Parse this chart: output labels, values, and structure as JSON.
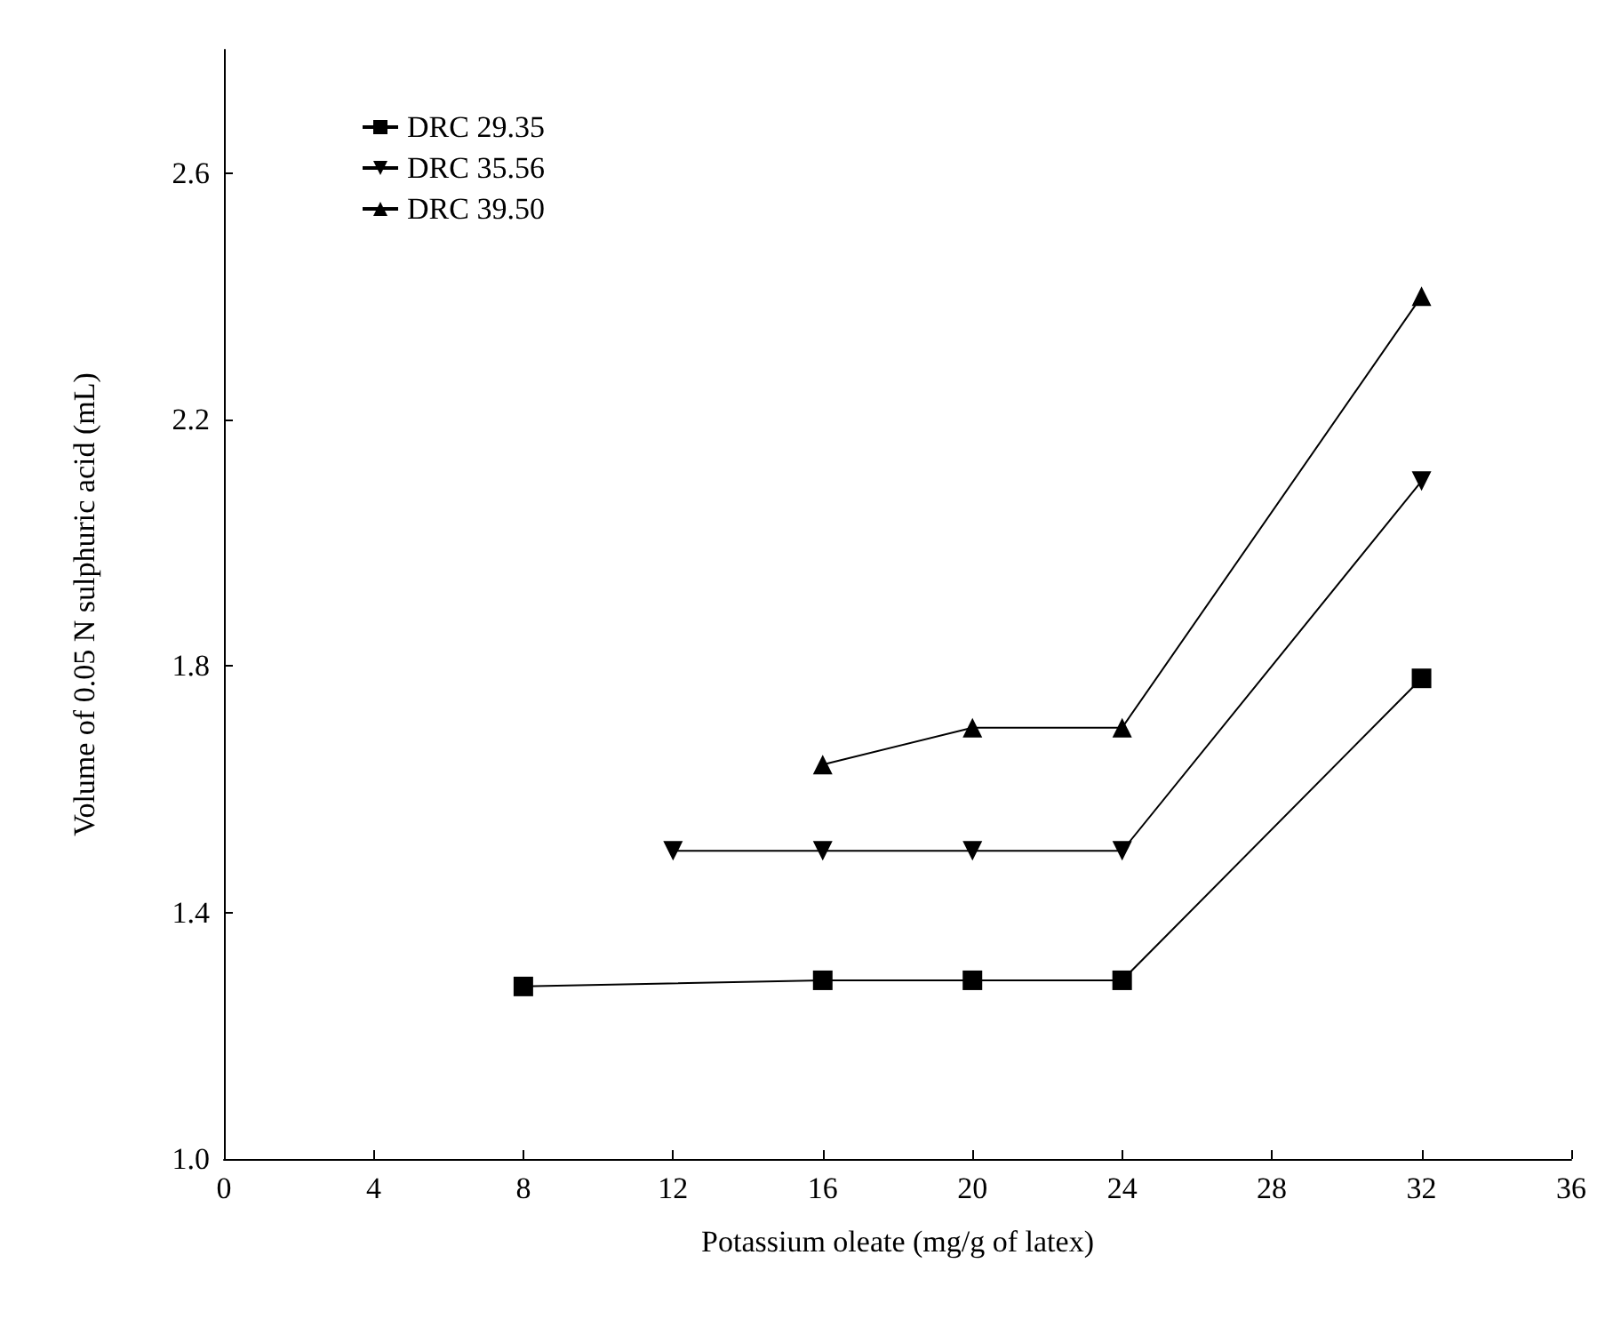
{
  "chart_data": {
    "type": "line",
    "xlabel": "Potassium oleate (mg/g of latex)",
    "ylabel": "Volume of 0.05 N sulphuric acid (mL)",
    "xlim": [
      0,
      36
    ],
    "xticks": [
      0,
      4,
      8,
      12,
      16,
      20,
      24,
      28,
      32,
      36
    ],
    "ylim": [
      1.0,
      2.8
    ],
    "yticks": [
      {
        "value": 1.0,
        "label": "1.0"
      },
      1.4,
      1.8,
      2.2,
      2.6
    ],
    "legend": "top left",
    "grid": false,
    "series": [
      {
        "name": "DRC 29.35",
        "color": "#000000",
        "marker": "square",
        "x": [
          8,
          16,
          20,
          24,
          32
        ],
        "values": [
          1.28,
          1.29,
          1.29,
          1.29,
          1.78
        ]
      },
      {
        "name": "DRC 35.56",
        "color": "#000000",
        "marker": "triangle-down",
        "x": [
          12,
          16,
          20,
          24,
          32
        ],
        "values": [
          1.5,
          1.5,
          1.5,
          1.5,
          2.1
        ]
      },
      {
        "name": "DRC 39.50",
        "color": "#000000",
        "marker": "triangle",
        "x": [
          16,
          20,
          24,
          32
        ],
        "values": [
          1.64,
          1.7,
          1.7,
          2.4
        ]
      }
    ]
  }
}
